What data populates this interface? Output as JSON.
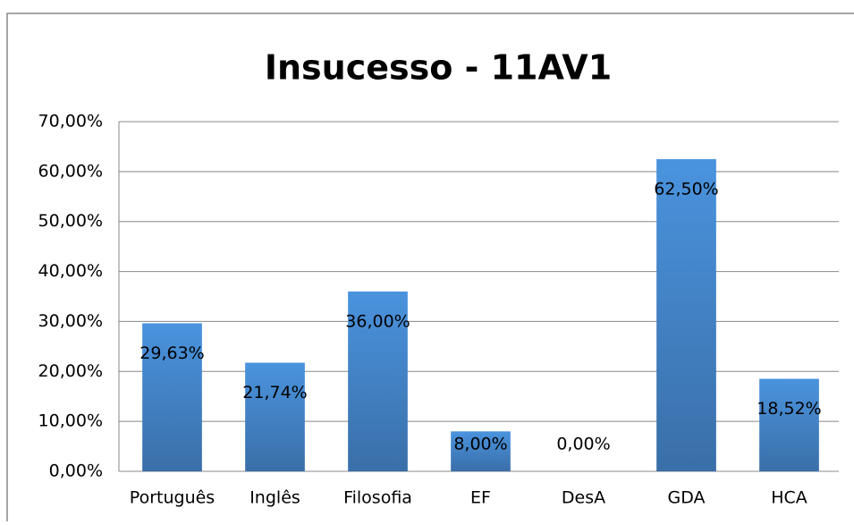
{
  "chart_data": {
    "type": "bar",
    "title": "Insucesso - 11AV1",
    "categories": [
      "Português",
      "Inglês",
      "Filosofia",
      "EF",
      "DesA",
      "GDA",
      "HCA"
    ],
    "values": [
      29.63,
      21.74,
      36.0,
      8.0,
      0.0,
      62.5,
      18.52
    ],
    "value_labels": [
      "29,63%",
      "21,74%",
      "36,00%",
      "8,00%",
      "0,00%",
      "62,50%",
      "18,52%"
    ],
    "color": "#4a8fd6",
    "ylim": [
      0,
      70
    ],
    "yticks": [
      {
        "value": 0,
        "label": "0,00%"
      },
      {
        "value": 10,
        "label": "10,00%"
      },
      {
        "value": 20,
        "label": "20,00%"
      },
      {
        "value": 30,
        "label": "30,00%"
      },
      {
        "value": 40,
        "label": "40,00%"
      },
      {
        "value": 50,
        "label": "50,00%"
      },
      {
        "value": 60,
        "label": "60,00%"
      },
      {
        "value": 70,
        "label": "70,00%"
      }
    ],
    "grid": true
  }
}
